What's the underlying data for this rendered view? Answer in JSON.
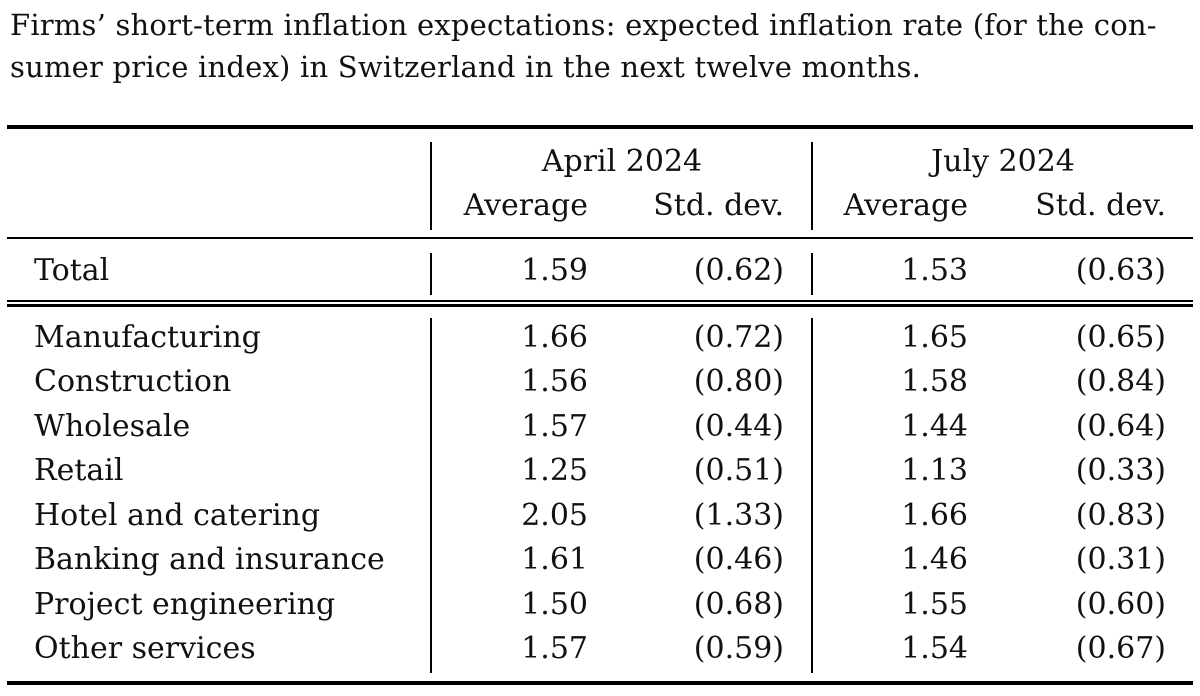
{
  "caption": {
    "line1": "Firms’ short-term inflation expectations: expected inflation rate (for the con-",
    "line2": "sumer price index) in Switzerland in the next twelve months."
  },
  "table": {
    "groups": [
      "April 2024",
      "July 2024"
    ],
    "subheaders": [
      "Average",
      "Std. dev.",
      "Average",
      "Std. dev."
    ],
    "total": {
      "label": "Total",
      "values": [
        "1.59",
        "(0.62)",
        "1.53",
        "(0.63)"
      ]
    },
    "rows": [
      {
        "label": "Manufacturing",
        "values": [
          "1.66",
          "(0.72)",
          "1.65",
          "(0.65)"
        ]
      },
      {
        "label": "Construction",
        "values": [
          "1.56",
          "(0.80)",
          "1.58",
          "(0.84)"
        ]
      },
      {
        "label": "Wholesale",
        "values": [
          "1.57",
          "(0.44)",
          "1.44",
          "(0.64)"
        ]
      },
      {
        "label": "Retail",
        "values": [
          "1.25",
          "(0.51)",
          "1.13",
          "(0.33)"
        ]
      },
      {
        "label": "Hotel and catering",
        "values": [
          "2.05",
          "(1.33)",
          "1.66",
          "(0.83)"
        ]
      },
      {
        "label": "Banking and insurance",
        "values": [
          "1.61",
          "(0.46)",
          "1.46",
          "(0.31)"
        ]
      },
      {
        "label": "Project engineering",
        "values": [
          "1.50",
          "(0.68)",
          "1.55",
          "(0.60)"
        ]
      },
      {
        "label": "Other services",
        "values": [
          "1.57",
          "(0.59)",
          "1.54",
          "(0.67)"
        ]
      }
    ]
  }
}
